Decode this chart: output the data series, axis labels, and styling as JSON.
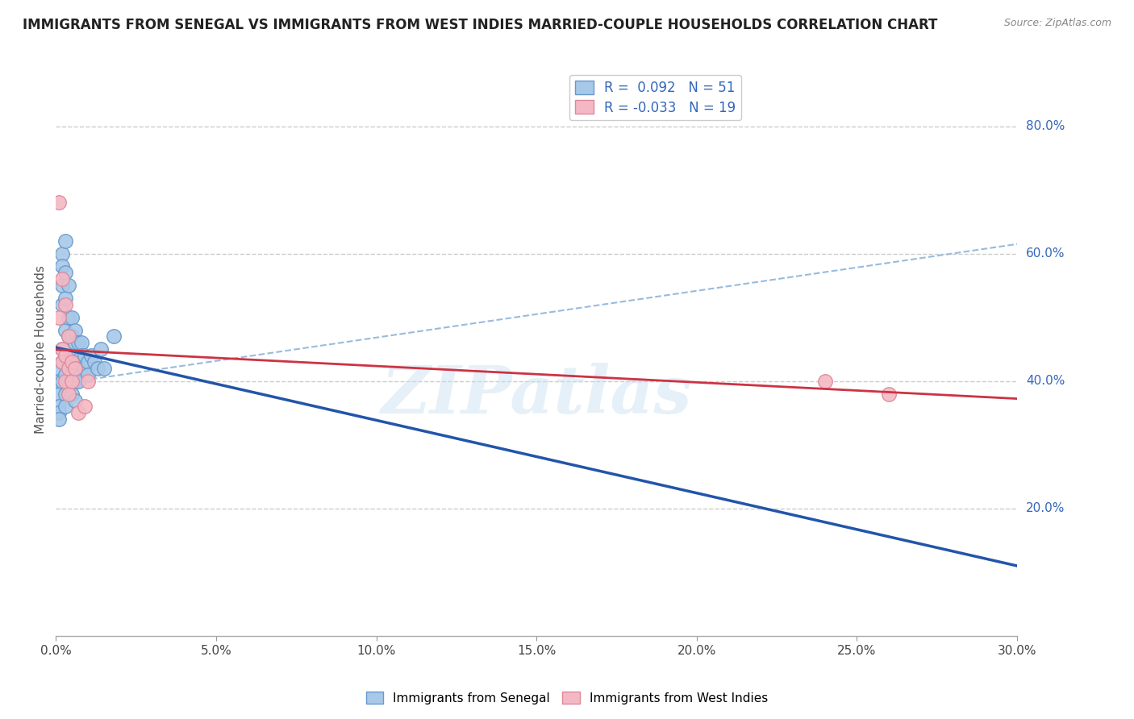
{
  "title": "IMMIGRANTS FROM SENEGAL VS IMMIGRANTS FROM WEST INDIES MARRIED-COUPLE HOUSEHOLDS CORRELATION CHART",
  "source": "Source: ZipAtlas.com",
  "xlabel": "",
  "ylabel": "Married-couple Households",
  "xlim": [
    0.0,
    0.3
  ],
  "ylim": [
    0.0,
    0.9
  ],
  "xticks": [
    0.0,
    0.05,
    0.1,
    0.15,
    0.2,
    0.25,
    0.3
  ],
  "xtick_labels": [
    "0.0%",
    "5.0%",
    "10.0%",
    "15.0%",
    "20.0%",
    "25.0%",
    "30.0%"
  ],
  "yticks": [
    0.2,
    0.4,
    0.6,
    0.8
  ],
  "ytick_labels": [
    "20.0%",
    "40.0%",
    "60.0%",
    "80.0%"
  ],
  "grid_color": "#cccccc",
  "background_color": "#ffffff",
  "senegal_color": "#a8c8e8",
  "senegal_edge_color": "#6699cc",
  "west_indies_color": "#f4b8c4",
  "west_indies_edge_color": "#dd8899",
  "senegal_R": 0.092,
  "senegal_N": 51,
  "west_indies_R": -0.033,
  "west_indies_N": 19,
  "senegal_line_color": "#2255aa",
  "west_indies_line_color": "#cc3344",
  "dashed_line_color": "#99bbdd",
  "watermark": "ZIPatlas",
  "senegal_x": [
    0.001,
    0.001,
    0.001,
    0.001,
    0.001,
    0.001,
    0.002,
    0.002,
    0.002,
    0.002,
    0.002,
    0.002,
    0.002,
    0.003,
    0.003,
    0.003,
    0.003,
    0.003,
    0.003,
    0.003,
    0.003,
    0.004,
    0.004,
    0.004,
    0.004,
    0.004,
    0.005,
    0.005,
    0.005,
    0.005,
    0.005,
    0.006,
    0.006,
    0.006,
    0.006,
    0.006,
    0.007,
    0.007,
    0.007,
    0.008,
    0.008,
    0.009,
    0.009,
    0.01,
    0.01,
    0.011,
    0.012,
    0.013,
    0.014,
    0.015,
    0.018
  ],
  "senegal_y": [
    0.42,
    0.4,
    0.38,
    0.36,
    0.35,
    0.34,
    0.6,
    0.58,
    0.55,
    0.52,
    0.45,
    0.43,
    0.4,
    0.62,
    0.57,
    0.53,
    0.48,
    0.44,
    0.41,
    0.38,
    0.36,
    0.55,
    0.5,
    0.47,
    0.43,
    0.4,
    0.5,
    0.47,
    0.44,
    0.41,
    0.38,
    0.48,
    0.46,
    0.43,
    0.4,
    0.37,
    0.46,
    0.43,
    0.4,
    0.46,
    0.44,
    0.44,
    0.42,
    0.43,
    0.41,
    0.44,
    0.43,
    0.42,
    0.45,
    0.42,
    0.47
  ],
  "west_indies_x": [
    0.001,
    0.001,
    0.002,
    0.002,
    0.002,
    0.003,
    0.003,
    0.003,
    0.004,
    0.004,
    0.004,
    0.005,
    0.005,
    0.006,
    0.007,
    0.009,
    0.01,
    0.24,
    0.26
  ],
  "west_indies_y": [
    0.68,
    0.5,
    0.56,
    0.45,
    0.43,
    0.52,
    0.44,
    0.4,
    0.47,
    0.42,
    0.38,
    0.43,
    0.4,
    0.42,
    0.35,
    0.36,
    0.4,
    0.4,
    0.38
  ],
  "legend_text_color": "#3366bb",
  "title_fontsize": 12,
  "label_fontsize": 11,
  "tick_fontsize": 11,
  "right_tick_color": "#3366bb"
}
